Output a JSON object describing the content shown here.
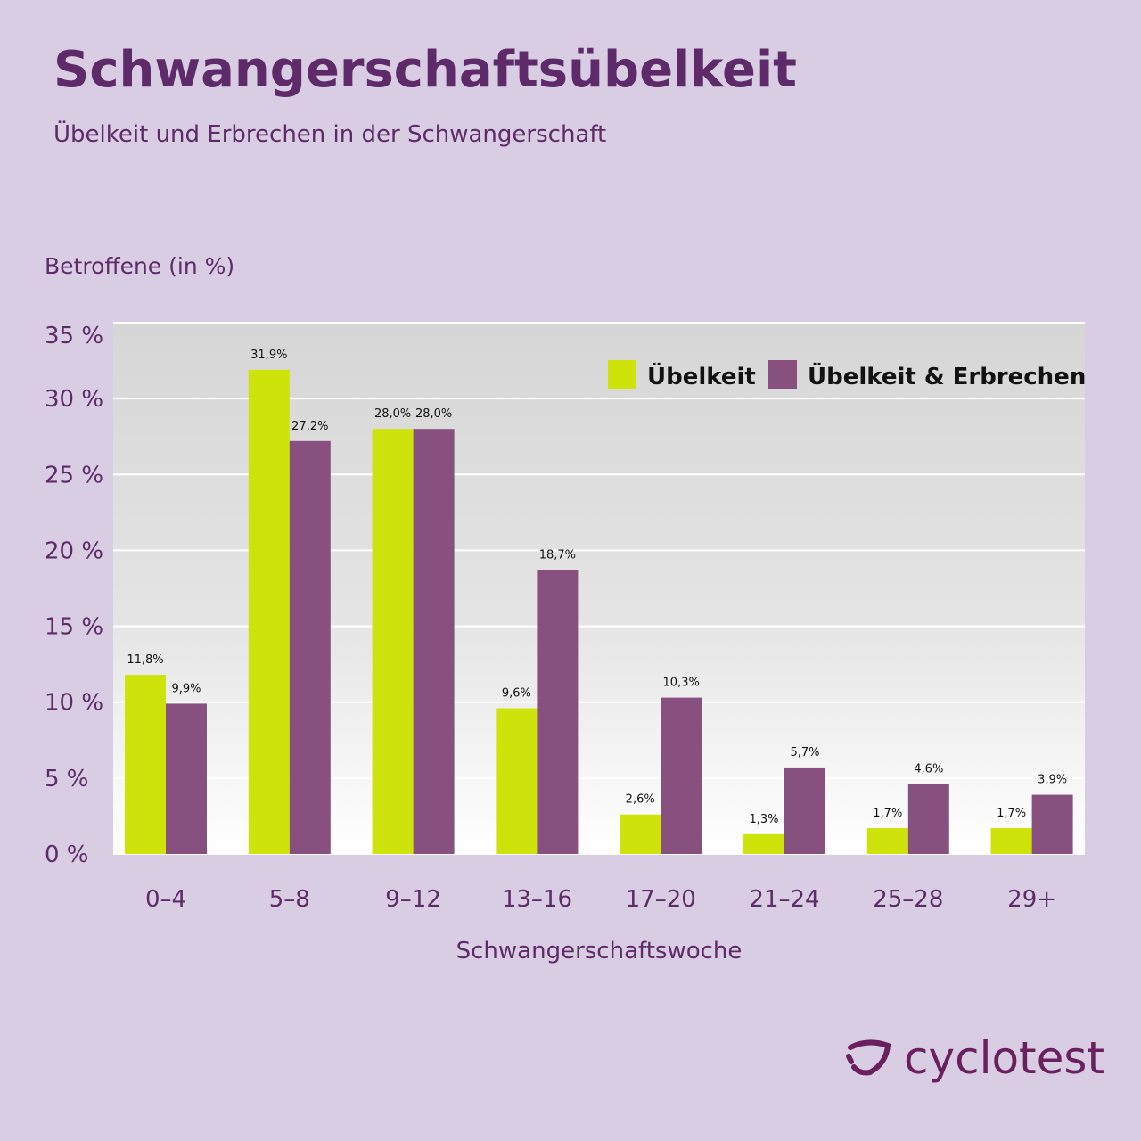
{
  "header": {
    "title": "Schwangerschaftsübelkeit",
    "subtitle": "Übelkeit und Erbrechen in der Schwangerschaft"
  },
  "chart_data": {
    "type": "bar",
    "ylabel": "Betroffene (in %)",
    "xlabel": "Schwangerschaftswoche",
    "ylim": [
      0,
      35
    ],
    "yticks": [
      0,
      5,
      10,
      15,
      20,
      25,
      30,
      35
    ],
    "ytick_labels": [
      "0 %",
      "5 %",
      "10 %",
      "15 %",
      "20 %",
      "25 %",
      "30 %",
      "35 %"
    ],
    "grid": true,
    "legend_position": "top-right",
    "categories": [
      "0–4",
      "5–8",
      "9–12",
      "13–16",
      "17–20",
      "21–24",
      "25–28",
      "29+"
    ],
    "series": [
      {
        "name": "Übelkeit",
        "color": "#cde30a",
        "values": [
          11.8,
          31.9,
          28.0,
          9.6,
          2.6,
          1.3,
          1.7,
          1.7
        ],
        "labels": [
          "11,8%",
          "31,9%",
          "28,0%",
          "9,6%",
          "2,6%",
          "1,3%",
          "1,7%",
          "1,7%"
        ]
      },
      {
        "name": "Übelkeit & Erbrechen",
        "color": "#87507f",
        "values": [
          9.9,
          27.2,
          28.0,
          18.7,
          10.3,
          5.7,
          4.6,
          3.9
        ],
        "labels": [
          "9,9%",
          "27,2%",
          "28,0%",
          "18,7%",
          "10,3%",
          "5,7%",
          "4,6%",
          "3,9%"
        ]
      }
    ]
  },
  "brand": {
    "name": "cyclotest",
    "color": "#6a1f5f"
  }
}
